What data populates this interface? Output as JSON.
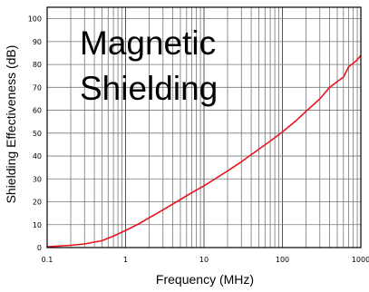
{
  "chart_data": {
    "type": "line",
    "title_lines": [
      "Magnetic",
      "Shielding"
    ],
    "xlabel": "Frequency (MHz)",
    "ylabel": "Shielding Effectiveness (dB)",
    "xscale": "log",
    "xlim": [
      0.1,
      1000
    ],
    "ylim": [
      0,
      105
    ],
    "grid": true,
    "x_ticks": [
      {
        "value": 0.1,
        "label": "0.1"
      },
      {
        "value": 1,
        "label": "1"
      },
      {
        "value": 10,
        "label": "10"
      },
      {
        "value": 100,
        "label": "100"
      },
      {
        "value": 1000,
        "label": "1000"
      }
    ],
    "y_ticks": [
      0,
      10,
      20,
      30,
      40,
      50,
      60,
      70,
      80,
      90,
      100
    ],
    "line_color": "#e8141c",
    "series": [
      {
        "x": [
          0.1,
          0.2,
          0.3,
          0.5,
          0.7,
          1,
          1.5,
          2,
          3,
          5,
          7,
          10,
          20,
          30,
          50,
          70,
          100,
          150,
          200,
          300,
          400,
          500,
          600,
          700,
          800,
          900,
          1000
        ],
        "y": [
          0.3,
          1.0,
          1.6,
          3.0,
          5.0,
          7.5,
          10.5,
          13.0,
          16.5,
          21.0,
          24.0,
          27.0,
          33.5,
          37.5,
          43.0,
          46.5,
          50.5,
          55.5,
          59.5,
          65.0,
          70.0,
          72.5,
          74.5,
          79.0,
          80.5,
          82.0,
          84.0
        ]
      }
    ]
  }
}
